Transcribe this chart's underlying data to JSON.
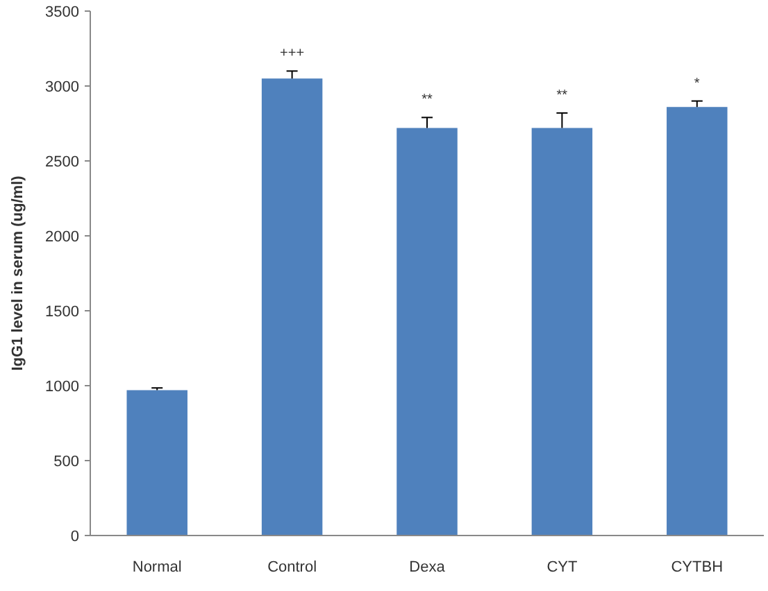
{
  "chart_data": {
    "type": "bar",
    "ylabel": "IgG1 level in serum (ug/ml)",
    "categories": [
      "Normal",
      "Control",
      "Dexa",
      "CYT",
      "CYTBH"
    ],
    "values": [
      970,
      3050,
      2720,
      2720,
      2860
    ],
    "errors": [
      15,
      50,
      70,
      100,
      40
    ],
    "color": "#4f81bd",
    "ylim": [
      0,
      3500
    ],
    "yticks": [
      0,
      500,
      1000,
      1500,
      2000,
      2500,
      3000,
      3500
    ],
    "annotations": [
      {
        "text": "+++",
        "x": "Control",
        "y": 3050
      },
      {
        "text": "**",
        "x": "Dexa",
        "y": 2720
      },
      {
        "text": "**",
        "x": "CYT",
        "y": 2720
      },
      {
        "text": "*",
        "x": "CYTBH",
        "y": 2860
      }
    ]
  }
}
